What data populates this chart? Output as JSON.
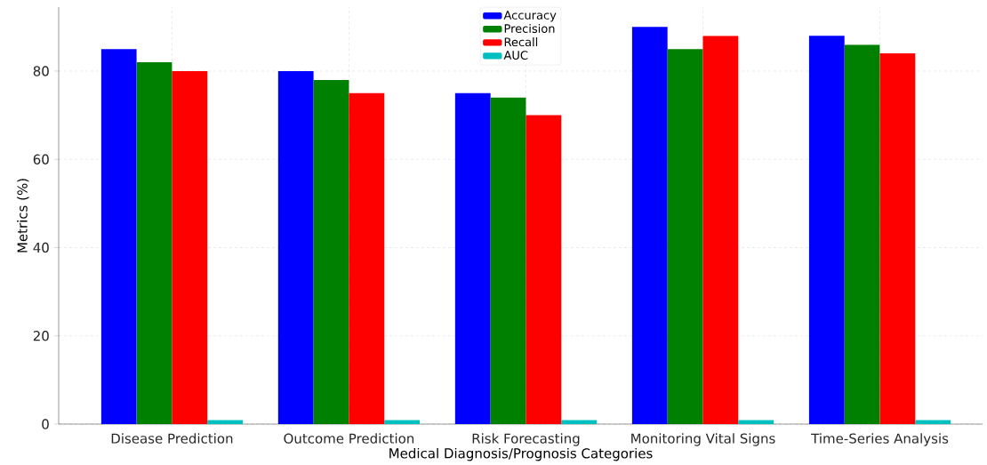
{
  "chart_data": {
    "type": "bar",
    "xlabel": "Medical Diagnosis/Prognosis Categories",
    "ylabel": "Metrics (%)",
    "categories": [
      "Disease Prediction",
      "Outcome Prediction",
      "Risk Forecasting",
      "Monitoring Vital Signs",
      "Time-Series Analysis"
    ],
    "series": [
      {
        "name": "Accuracy",
        "color": "#0000ff",
        "values": [
          85,
          80,
          75,
          90,
          88
        ]
      },
      {
        "name": "Precision",
        "color": "#008000",
        "values": [
          82,
          78,
          74,
          85,
          86
        ]
      },
      {
        "name": "Recall",
        "color": "#ff0000",
        "values": [
          80,
          75,
          70,
          88,
          84
        ]
      },
      {
        "name": "AUC",
        "color": "#00bfbf",
        "values": [
          0.9,
          0.9,
          0.9,
          0.9,
          0.9
        ]
      }
    ],
    "ylim": [
      0,
      94.5
    ],
    "yticks": [
      0,
      20,
      40,
      60,
      80
    ],
    "grid": true,
    "legend": "top"
  }
}
